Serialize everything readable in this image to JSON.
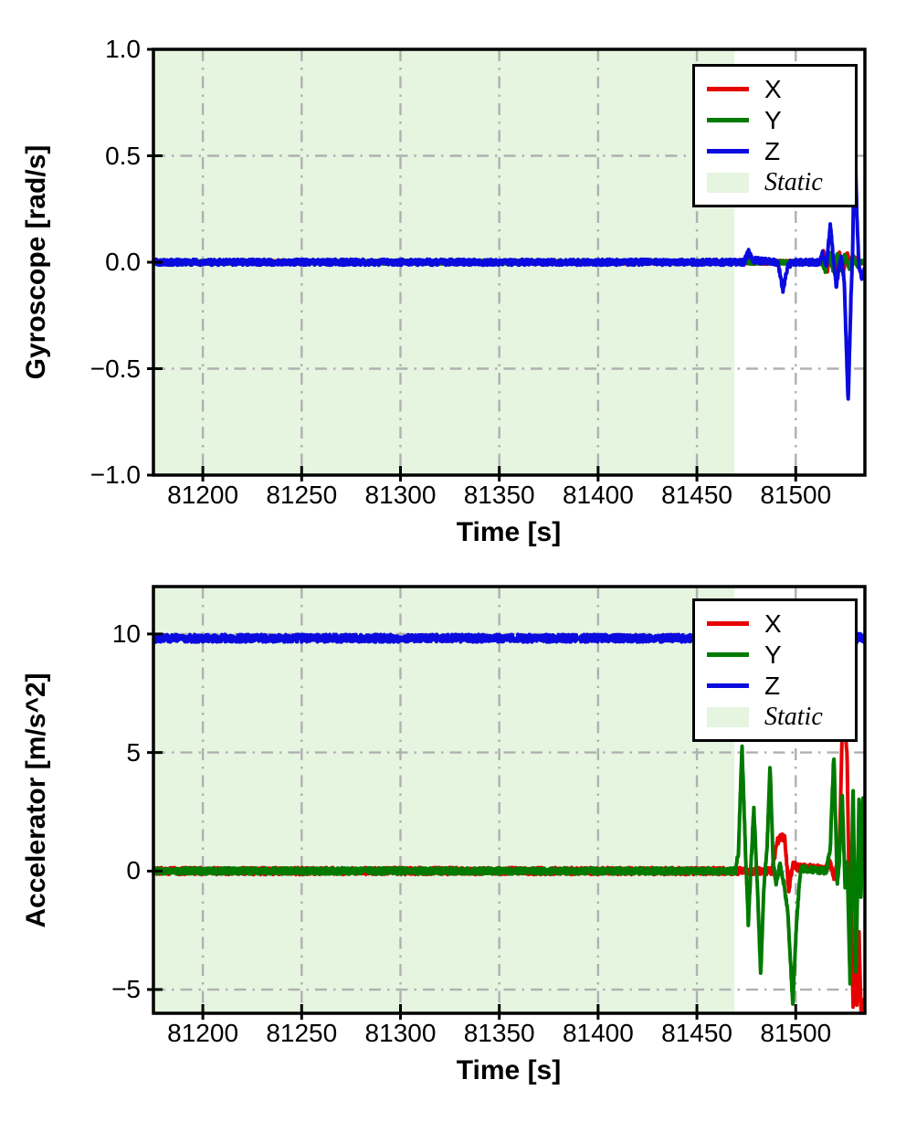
{
  "colors": {
    "background": "#ffffff",
    "spine": "#000000",
    "grid": "#b0b0b0",
    "static_fill": "#e5f5e0",
    "series_x": "#e60000",
    "series_y": "#007a00",
    "series_z": "#0b0bdf"
  },
  "legend": {
    "items": [
      {
        "label": "X",
        "swatch": "line",
        "color": "#e60000"
      },
      {
        "label": "Y",
        "swatch": "line",
        "color": "#007a00"
      },
      {
        "label": "Z",
        "swatch": "line",
        "color": "#0b0bdf"
      },
      {
        "label": "Static",
        "swatch": "patch",
        "color": "#e5f5e0"
      }
    ],
    "position": "upper right"
  },
  "chart_data": [
    {
      "type": "line",
      "title": "",
      "xlabel": "Time [s]",
      "ylabel": "Gyroscope [rad/s]",
      "xlim": [
        81175,
        81535
      ],
      "ylim": [
        -1.0,
        1.0
      ],
      "grid": true,
      "grid_style": "dash-dot",
      "xticks": {
        "values": [
          81200,
          81250,
          81300,
          81350,
          81400,
          81450,
          81500
        ],
        "labels": [
          "81200",
          "81250",
          "81300",
          "81350",
          "81400",
          "81450",
          "81500"
        ]
      },
      "yticks": {
        "values": [
          1.0,
          0.5,
          0.0,
          -0.5,
          -1.0
        ],
        "labels": [
          "1.0",
          "0.5",
          "0.0",
          "−0.5",
          "−1.0"
        ]
      },
      "static_region": {
        "label": "Static",
        "x_start": 81175,
        "x_end": 81469
      },
      "series": [
        {
          "name": "X",
          "color": "#e60000",
          "noise": 0.009,
          "keypoints": [
            [
              81175,
              0
            ],
            [
              81512,
              0
            ],
            [
              81514,
              0.05
            ],
            [
              81516,
              -0.04
            ],
            [
              81518,
              0.04
            ],
            [
              81520,
              -0.05
            ],
            [
              81522,
              0.05
            ],
            [
              81524,
              -0.05
            ],
            [
              81526,
              0.05
            ],
            [
              81528,
              -0.03
            ],
            [
              81530,
              0.02
            ],
            [
              81532,
              0
            ],
            [
              81535,
              0
            ]
          ]
        },
        {
          "name": "Y",
          "color": "#007a00",
          "noise": 0.009,
          "keypoints": [
            [
              81175,
              0
            ],
            [
              81513,
              0
            ],
            [
              81515,
              -0.04
            ],
            [
              81517,
              0.04
            ],
            [
              81519,
              -0.04
            ],
            [
              81521,
              0.04
            ],
            [
              81523,
              -0.04
            ],
            [
              81525,
              0.04
            ],
            [
              81527,
              -0.03
            ],
            [
              81529,
              0.03
            ],
            [
              81531,
              -0.02
            ],
            [
              81533,
              0
            ],
            [
              81535,
              0
            ]
          ]
        },
        {
          "name": "Z",
          "color": "#0b0bdf",
          "noise": 0.014,
          "keypoints": [
            [
              81175,
              0
            ],
            [
              81474,
              0
            ],
            [
              81476,
              0.05
            ],
            [
              81478,
              0.01
            ],
            [
              81491,
              0
            ],
            [
              81493.5,
              -0.13
            ],
            [
              81496,
              -0.02
            ],
            [
              81498,
              0
            ],
            [
              81512,
              0
            ],
            [
              81513.5,
              0.04
            ],
            [
              81515.5,
              -0.02
            ],
            [
              81517.5,
              0.18
            ],
            [
              81519,
              0.02
            ],
            [
              81520.5,
              -0.11
            ],
            [
              81522,
              -0.02
            ],
            [
              81523,
              0.02
            ],
            [
              81524.5,
              -0.08
            ],
            [
              81526.5,
              -0.66
            ],
            [
              81528,
              -0.15
            ],
            [
              81528.8,
              0.05
            ],
            [
              81529.8,
              0.66
            ],
            [
              81531,
              0.2
            ],
            [
              81532,
              -0.02
            ],
            [
              81533.5,
              -0.07
            ],
            [
              81535,
              -0.03
            ]
          ]
        }
      ]
    },
    {
      "type": "line",
      "title": "",
      "xlabel": "Time [s]",
      "ylabel": "Accelerator [m/s^2]",
      "xlim": [
        81175,
        81535
      ],
      "ylim": [
        -6.0,
        12.0
      ],
      "grid": true,
      "grid_style": "dash-dot",
      "xticks": {
        "values": [
          81200,
          81250,
          81300,
          81350,
          81400,
          81450,
          81500
        ],
        "labels": [
          "81200",
          "81250",
          "81300",
          "81350",
          "81400",
          "81450",
          "81500"
        ]
      },
      "yticks": {
        "values": [
          10,
          5,
          0,
          -5
        ],
        "labels": [
          "10",
          "5",
          "0",
          "−5"
        ]
      },
      "static_region": {
        "label": "Static",
        "x_start": 81175,
        "x_end": 81469
      },
      "series": [
        {
          "name": "X",
          "color": "#e60000",
          "noise": 0.15,
          "keypoints": [
            [
              81175,
              0
            ],
            [
              81488,
              0
            ],
            [
              81490.5,
              1.2
            ],
            [
              81492.5,
              1.5
            ],
            [
              81494.5,
              1.35
            ],
            [
              81496.5,
              -0.8
            ],
            [
              81498.5,
              0.3
            ],
            [
              81501,
              0.15
            ],
            [
              81515,
              0.1
            ],
            [
              81517.5,
              0.35
            ],
            [
              81519.5,
              -0.3
            ],
            [
              81521,
              0.3
            ],
            [
              81522,
              0.5
            ],
            [
              81523.5,
              5.9
            ],
            [
              81524.8,
              6.3
            ],
            [
              81526,
              4.8
            ],
            [
              81527,
              -0.5
            ],
            [
              81528,
              -1.2
            ],
            [
              81529,
              -5.8
            ],
            [
              81530,
              -3.0
            ],
            [
              81531,
              -5.9
            ],
            [
              81532,
              -2.5
            ],
            [
              81533,
              -5.9
            ],
            [
              81534,
              -5.4
            ],
            [
              81535,
              -5.8
            ]
          ]
        },
        {
          "name": "Y",
          "color": "#007a00",
          "noise": 0.13,
          "keypoints": [
            [
              81175,
              0
            ],
            [
              81469.5,
              0
            ],
            [
              81471,
              0.8
            ],
            [
              81472.8,
              5.3
            ],
            [
              81474.5,
              1.0
            ],
            [
              81476,
              -2.2
            ],
            [
              81477.5,
              0.5
            ],
            [
              81478.8,
              2.7
            ],
            [
              81480.5,
              -0.5
            ],
            [
              81482.3,
              -4.4
            ],
            [
              81484,
              -0.5
            ],
            [
              81485.5,
              1.0
            ],
            [
              81487,
              4.5
            ],
            [
              81488.5,
              0.5
            ],
            [
              81490,
              -0.6
            ],
            [
              81492,
              0.3
            ],
            [
              81494,
              -0.5
            ],
            [
              81496,
              -1.8
            ],
            [
              81498.5,
              -5.6
            ],
            [
              81500.5,
              -2.0
            ],
            [
              81502.5,
              0.1
            ],
            [
              81515.5,
              0
            ],
            [
              81517.5,
              1.0
            ],
            [
              81519.3,
              5.0
            ],
            [
              81521,
              -0.6
            ],
            [
              81522,
              0.4
            ],
            [
              81523.5,
              3.3
            ],
            [
              81525,
              -0.8
            ],
            [
              81526,
              0.6
            ],
            [
              81527.5,
              -4.7
            ],
            [
              81529,
              3.6
            ],
            [
              81530.5,
              -4.5
            ],
            [
              81532,
              3.1
            ],
            [
              81533,
              -1.2
            ],
            [
              81534,
              3.2
            ],
            [
              81535,
              1.5
            ]
          ]
        },
        {
          "name": "Z",
          "color": "#0b0bdf",
          "noise": 0.16,
          "keypoints": [
            [
              81175,
              9.82
            ],
            [
              81521,
              9.82
            ],
            [
              81523.5,
              9.95
            ],
            [
              81526,
              9.55
            ],
            [
              81528,
              9.95
            ],
            [
              81530,
              9.62
            ],
            [
              81532,
              9.9
            ],
            [
              81535,
              9.78
            ]
          ]
        }
      ]
    }
  ]
}
